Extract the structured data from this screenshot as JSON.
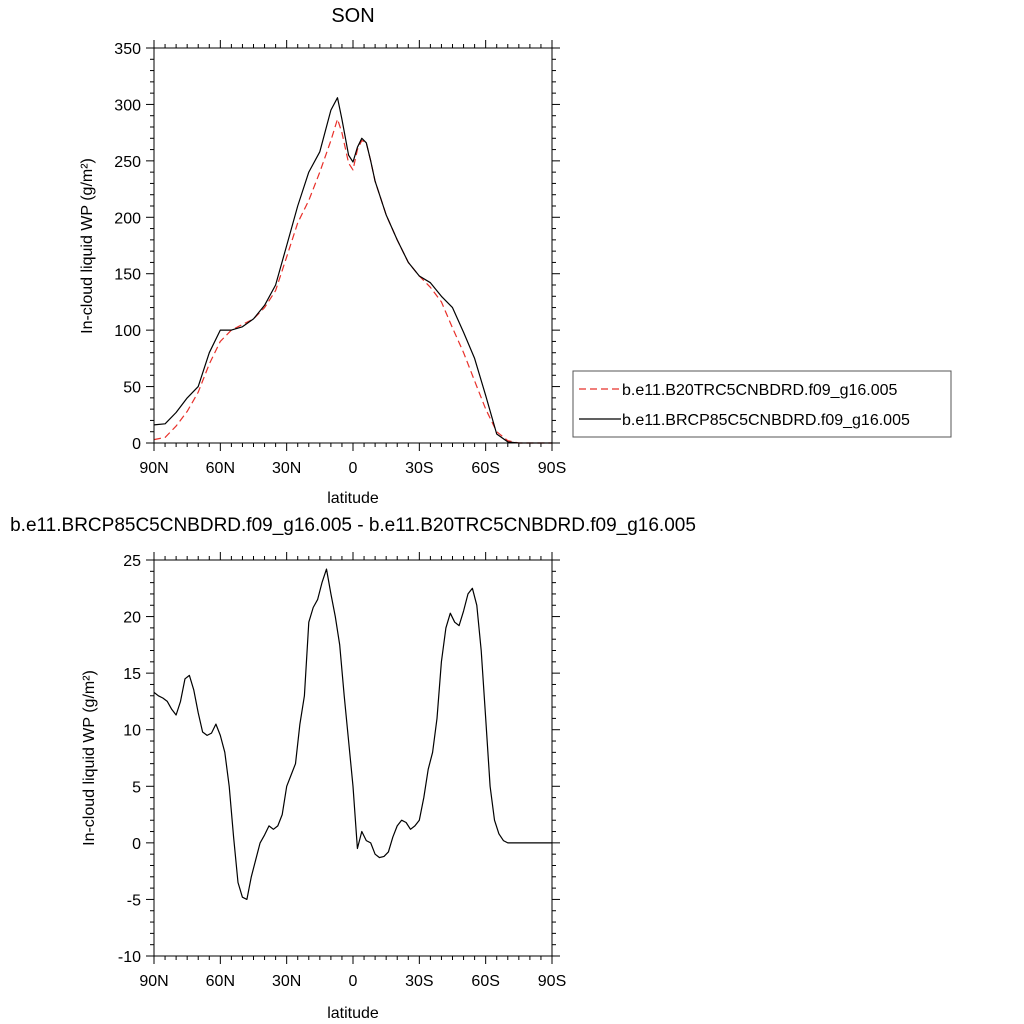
{
  "chart_data": [
    {
      "type": "line",
      "title": "SON",
      "xlabel": "latitude",
      "ylabel": "In-cloud liquid WP (g/m²)",
      "xlim": [
        90,
        -90
      ],
      "ylim": [
        0,
        350
      ],
      "yticks": [
        0,
        50,
        100,
        150,
        200,
        250,
        300,
        350
      ],
      "xticks": [
        90,
        60,
        30,
        0,
        -30,
        -60,
        -90
      ],
      "xtick_labels": [
        "90N",
        "60N",
        "30N",
        "0",
        "30S",
        "60S",
        "90S"
      ],
      "legend_position": "right",
      "series": [
        {
          "name": "b.e11.B20TRC5CNBDRD.f09_g16.005",
          "color": "#e8302a",
          "dash": "dashed",
          "x": [
            90,
            85,
            80,
            75,
            70,
            65,
            60,
            55,
            50,
            45,
            40,
            35,
            30,
            25,
            20,
            15,
            10,
            7,
            5,
            2,
            0,
            -2,
            -4,
            -6,
            -8,
            -10,
            -15,
            -20,
            -25,
            -30,
            -35,
            -40,
            -45,
            -50,
            -55,
            -60,
            -65,
            -70,
            -75,
            -80,
            -85,
            -90
          ],
          "y": [
            3,
            5,
            15,
            28,
            45,
            70,
            90,
            100,
            105,
            110,
            120,
            135,
            165,
            195,
            215,
            240,
            268,
            287,
            275,
            248,
            242,
            260,
            268,
            266,
            250,
            232,
            202,
            180,
            160,
            148,
            138,
            125,
            102,
            80,
            55,
            30,
            10,
            2,
            0,
            0,
            0,
            0
          ]
        },
        {
          "name": "b.e11.BRCP85C5CNBDRD.f09_g16.005",
          "color": "#000000",
          "dash": "solid",
          "x": [
            90,
            85,
            80,
            75,
            70,
            65,
            60,
            55,
            50,
            45,
            40,
            35,
            30,
            25,
            20,
            15,
            10,
            7,
            5,
            2,
            0,
            -2,
            -4,
            -6,
            -8,
            -10,
            -15,
            -20,
            -25,
            -30,
            -35,
            -40,
            -45,
            -50,
            -55,
            -60,
            -65,
            -70,
            -75,
            -80,
            -85,
            -90
          ],
          "y": [
            16,
            17,
            27,
            40,
            50,
            80,
            100,
            100,
            103,
            110,
            122,
            140,
            175,
            210,
            240,
            258,
            295,
            306,
            287,
            255,
            249,
            262,
            270,
            266,
            250,
            232,
            202,
            180,
            160,
            148,
            142,
            130,
            120,
            98,
            75,
            42,
            8,
            1,
            0,
            0,
            0,
            0
          ]
        }
      ]
    },
    {
      "type": "line",
      "title": "b.e11.BRCP85C5CNBDRD.f09_g16.005 - b.e11.B20TRC5CNBDRD.f09_g16.005",
      "xlabel": "latitude",
      "ylabel": "In-cloud liquid WP (g/m²)",
      "xlim": [
        90,
        -90
      ],
      "ylim": [
        -10,
        25
      ],
      "yticks": [
        -10,
        -5,
        0,
        5,
        10,
        15,
        20,
        25
      ],
      "xticks": [
        90,
        60,
        30,
        0,
        -30,
        -60,
        -90
      ],
      "xtick_labels": [
        "90N",
        "60N",
        "30N",
        "0",
        "30S",
        "60S",
        "90S"
      ],
      "series": [
        {
          "color": "#000000",
          "x": [
            90,
            88,
            86,
            84,
            82,
            80,
            78,
            76,
            74,
            72,
            70,
            68,
            66,
            64,
            62,
            60,
            58,
            56,
            54,
            52,
            50,
            48,
            46,
            44,
            42,
            40,
            38,
            36,
            34,
            32,
            30,
            28,
            26,
            24,
            22,
            20,
            18,
            16,
            14,
            12,
            10,
            8,
            6,
            4,
            2,
            0,
            -2,
            -4,
            -6,
            -8,
            -10,
            -12,
            -14,
            -16,
            -18,
            -20,
            -22,
            -24,
            -26,
            -28,
            -30,
            -32,
            -34,
            -36,
            -38,
            -40,
            -42,
            -44,
            -46,
            -48,
            -50,
            -52,
            -54,
            -56,
            -58,
            -60,
            -62,
            -64,
            -66,
            -68,
            -70,
            -75,
            -80,
            -85,
            -90
          ],
          "y": [
            13.3,
            13.0,
            12.8,
            12.5,
            11.8,
            11.3,
            12.5,
            14.5,
            14.8,
            13.5,
            11.5,
            9.8,
            9.5,
            9.7,
            10.5,
            9.5,
            8.0,
            5.0,
            0.5,
            -3.5,
            -4.8,
            -5.0,
            -3.0,
            -1.5,
            0.0,
            0.7,
            1.5,
            1.2,
            1.5,
            2.5,
            5.0,
            6.0,
            7.0,
            10.5,
            13.0,
            19.5,
            20.8,
            21.5,
            23.0,
            24.2,
            22.0,
            20.0,
            17.5,
            13.0,
            9.0,
            5.0,
            -0.5,
            1.0,
            0.2,
            0.0,
            -1.0,
            -1.3,
            -1.2,
            -0.8,
            0.5,
            1.5,
            2.0,
            1.8,
            1.2,
            1.5,
            2.0,
            4.0,
            6.5,
            8.0,
            11.0,
            16.0,
            19.0,
            20.3,
            19.5,
            19.2,
            20.5,
            22.0,
            22.5,
            21.0,
            17.0,
            11.0,
            5.0,
            2.0,
            0.8,
            0.2,
            0.0,
            0.0,
            0.0,
            0.0,
            0.0
          ]
        }
      ]
    }
  ]
}
